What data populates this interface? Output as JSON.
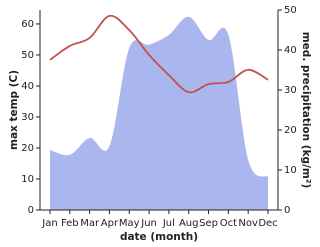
{
  "chart_data": {
    "type": "area-line",
    "categories": [
      "Jan",
      "Feb",
      "Mar",
      "Apr",
      "May",
      "Jun",
      "Jul",
      "Aug",
      "Sep",
      "Oct",
      "Nov",
      "Dec"
    ],
    "x_label": "date (month)",
    "y_label": "max temp (C)",
    "y2_label": "med. precipitation (kg/m²)",
    "ylim": [
      0,
      64.5
    ],
    "yticks": [
      0,
      10,
      20,
      30,
      40,
      50,
      60
    ],
    "y2lim": [
      0,
      50
    ],
    "y2ticks": [
      0,
      10,
      20,
      30,
      40,
      50
    ],
    "series": [
      {
        "name": "precipitation",
        "color": "#aab7ef",
        "axis": "y2",
        "kind": "area",
        "values": [
          15,
          13.8,
          18,
          16,
          40.5,
          41.3,
          43.8,
          48.3,
          42.5,
          43.8,
          12.5,
          8.3
        ]
      },
      {
        "name": "max temp",
        "color": "#c4504c",
        "axis": "y",
        "kind": "line",
        "values": [
          48.4,
          52.9,
          55.5,
          62.6,
          58,
          50,
          43.5,
          38,
          40.6,
          41.3,
          45.2,
          42
        ]
      }
    ]
  }
}
